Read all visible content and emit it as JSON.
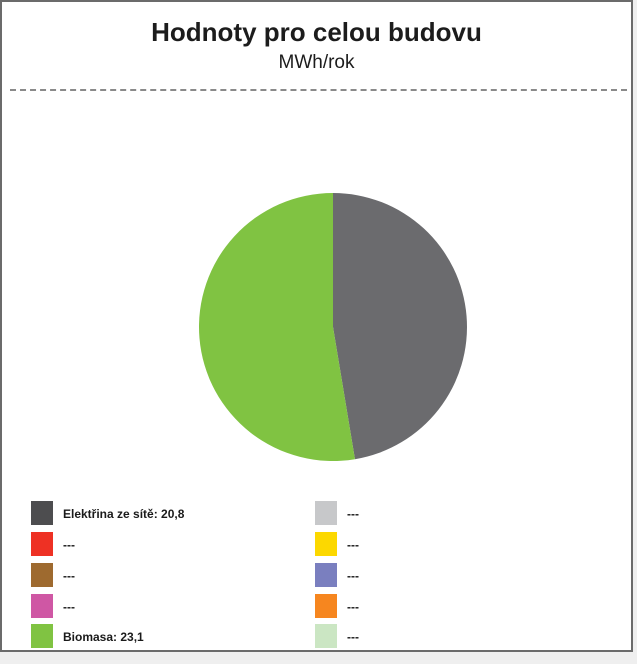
{
  "title": "Hodnoty pro celou budovu",
  "subtitle": "MWh/rok",
  "chart_data": {
    "type": "pie",
    "title": "Hodnoty pro celou budovu",
    "subtitle": "MWh/rok",
    "slices": [
      {
        "name": "Elektřina ze sítě",
        "value": 20.8,
        "color": "#6b6b6e"
      },
      {
        "name": "Biomasa",
        "value": 23.1,
        "color": "#80c342"
      }
    ]
  },
  "legend": {
    "left": [
      {
        "label": "Elektřina ze sítě: 20,8",
        "color": "#4d4d4f"
      },
      {
        "label": "---",
        "color": "#ee3124"
      },
      {
        "label": "---",
        "color": "#9e6a2f"
      },
      {
        "label": "---",
        "color": "#cf57a4"
      },
      {
        "label": "Biomasa: 23,1",
        "color": "#80c342"
      }
    ],
    "right": [
      {
        "label": "---",
        "color": "#c7c8ca"
      },
      {
        "label": "---",
        "color": "#fcd800"
      },
      {
        "label": "---",
        "color": "#7a7fbf"
      },
      {
        "label": "---",
        "color": "#f6861f"
      },
      {
        "label": "---",
        "color": "#cbe6c3"
      }
    ]
  }
}
